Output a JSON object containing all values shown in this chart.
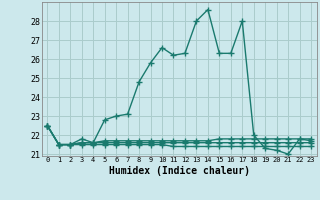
{
  "title": "",
  "xlabel": "Humidex (Indice chaleur)",
  "ylabel": "",
  "background_color": "#cce8ec",
  "grid_color": "#aacccc",
  "line_color": "#1a7a6e",
  "x": [
    0,
    1,
    2,
    3,
    4,
    5,
    6,
    7,
    8,
    9,
    10,
    11,
    12,
    13,
    14,
    15,
    16,
    17,
    18,
    19,
    20,
    21,
    22,
    23
  ],
  "series": [
    [
      22.5,
      21.5,
      21.5,
      21.8,
      21.6,
      22.8,
      23.0,
      23.1,
      24.8,
      25.8,
      26.6,
      26.2,
      26.3,
      28.0,
      28.6,
      26.3,
      26.3,
      28.0,
      22.0,
      21.3,
      21.2,
      21.0,
      21.8,
      21.7
    ],
    [
      22.5,
      21.5,
      21.5,
      21.6,
      21.6,
      21.7,
      21.7,
      21.7,
      21.7,
      21.7,
      21.7,
      21.7,
      21.7,
      21.7,
      21.7,
      21.8,
      21.8,
      21.8,
      21.8,
      21.8,
      21.8,
      21.8,
      21.8,
      21.8
    ],
    [
      22.5,
      21.5,
      21.5,
      21.6,
      21.6,
      21.6,
      21.6,
      21.6,
      21.6,
      21.6,
      21.6,
      21.6,
      21.6,
      21.6,
      21.6,
      21.6,
      21.6,
      21.6,
      21.6,
      21.6,
      21.6,
      21.6,
      21.6,
      21.6
    ],
    [
      22.5,
      21.5,
      21.5,
      21.5,
      21.5,
      21.5,
      21.5,
      21.5,
      21.5,
      21.5,
      21.5,
      21.4,
      21.4,
      21.4,
      21.4,
      21.4,
      21.4,
      21.4,
      21.4,
      21.4,
      21.4,
      21.4,
      21.4,
      21.4
    ]
  ],
  "ylim": [
    20.9,
    29.0
  ],
  "yticks": [
    21,
    22,
    23,
    24,
    25,
    26,
    27,
    28
  ],
  "xticks": [
    0,
    1,
    2,
    3,
    4,
    5,
    6,
    7,
    8,
    9,
    10,
    11,
    12,
    13,
    14,
    15,
    16,
    17,
    18,
    19,
    20,
    21,
    22,
    23
  ],
  "marker": "+",
  "markersize": 4,
  "linewidth": 1.0
}
